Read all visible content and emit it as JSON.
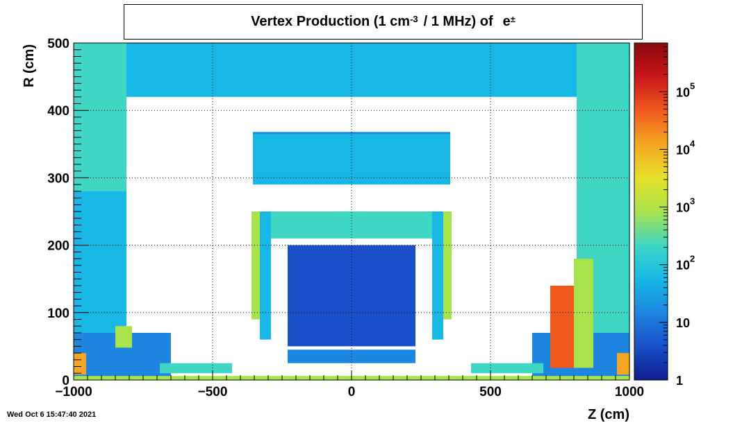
{
  "title": {
    "main": "Vertex Production (1 cm",
    "exp": "-3",
    "mid": "/ 1 MHz) of",
    "particle": "e",
    "particle_sup": "±"
  },
  "footer": "Wed Oct  6 15:47:40 2021",
  "chart_data": {
    "type": "heatmap",
    "xlabel": "Z (cm)",
    "ylabel": "R (cm)",
    "xlim": [
      -1000,
      1000
    ],
    "ylim": [
      0,
      500
    ],
    "x_ticks": [
      {
        "value": -1000,
        "label": "−1000"
      },
      {
        "value": -500,
        "label": "−500"
      },
      {
        "value": 0,
        "label": "0"
      },
      {
        "value": 500,
        "label": "500"
      },
      {
        "value": 1000,
        "label": "1000"
      }
    ],
    "y_ticks": [
      {
        "value": 0,
        "label": "0"
      },
      {
        "value": 100,
        "label": "100"
      },
      {
        "value": 200,
        "label": "200"
      },
      {
        "value": 300,
        "label": "300"
      },
      {
        "value": 400,
        "label": "400"
      },
      {
        "value": 500,
        "label": "500"
      }
    ],
    "grid": true,
    "colorscale": "log",
    "z_range": [
      1,
      700000
    ],
    "colorbar_ticks": [
      {
        "value": 1,
        "base": "1",
        "exp": ""
      },
      {
        "value": 10,
        "base": "10",
        "exp": ""
      },
      {
        "value": 100,
        "base": "10",
        "exp": "2"
      },
      {
        "value": 1000,
        "base": "10",
        "exp": "3"
      },
      {
        "value": 10000,
        "base": "10",
        "exp": "4"
      },
      {
        "value": 100000,
        "base": "10",
        "exp": "5"
      }
    ],
    "colors": [
      "#0d1f8c",
      "#1a4fc9",
      "#1c86e0",
      "#18b8e6",
      "#3fd6c4",
      "#a9e34b",
      "#e6e02a",
      "#f5a623",
      "#ef5a1c",
      "#c8161d",
      "#8b0a0a"
    ],
    "regions": [
      {
        "z": [
          -1000,
          -810
        ],
        "r": [
          0,
          500
        ],
        "value": 150
      },
      {
        "z": [
          -1000,
          -810
        ],
        "r": [
          0,
          280
        ],
        "value": 100
      },
      {
        "z": [
          810,
          1000
        ],
        "r": [
          0,
          500
        ],
        "value": 150
      },
      {
        "z": [
          -810,
          810
        ],
        "r": [
          420,
          500
        ],
        "value": 40
      },
      {
        "z": [
          -355,
          355
        ],
        "r": [
          360,
          368
        ],
        "value": 20
      },
      {
        "z": [
          -355,
          355
        ],
        "r": [
          290,
          365
        ],
        "value": 60
      },
      {
        "z": [
          -310,
          310
        ],
        "r": [
          210,
          250
        ],
        "value": 200
      },
      {
        "z": [
          -230,
          230
        ],
        "r": [
          50,
          195
        ],
        "value": 6
      },
      {
        "z": [
          -230,
          230
        ],
        "r": [
          195,
          200
        ],
        "value": 2
      },
      {
        "z": [
          -360,
          -330
        ],
        "r": [
          90,
          250
        ],
        "value": 800
      },
      {
        "z": [
          330,
          360
        ],
        "r": [
          90,
          250
        ],
        "value": 700
      },
      {
        "z": [
          -1000,
          -650
        ],
        "r": [
          0,
          70
        ],
        "value": 8
      },
      {
        "z": [
          650,
          1000
        ],
        "r": [
          0,
          70
        ],
        "value": 8
      },
      {
        "z": [
          -1000,
          1000
        ],
        "r": [
          0,
          6
        ],
        "value": 500
      },
      {
        "z": [
          -690,
          -430
        ],
        "r": [
          10,
          25
        ],
        "value": 300
      },
      {
        "z": [
          430,
          690
        ],
        "r": [
          10,
          25
        ],
        "value": 300
      },
      {
        "z": [
          -850,
          -790
        ],
        "r": [
          48,
          80
        ],
        "value": 600
      },
      {
        "z": [
          -1000,
          -955
        ],
        "r": [
          8,
          40
        ],
        "value": 20000
      },
      {
        "z": [
          955,
          1000
        ],
        "r": [
          8,
          40
        ],
        "value": 20000
      },
      {
        "z": [
          715,
          800
        ],
        "r": [
          18,
          140
        ],
        "value": 25000
      },
      {
        "z": [
          800,
          870
        ],
        "r": [
          18,
          180
        ],
        "value": 800
      },
      {
        "z": [
          -230,
          230
        ],
        "r": [
          25,
          45
        ],
        "value": 20
      },
      {
        "z": [
          -330,
          -290
        ],
        "r": [
          60,
          250
        ],
        "value": 60
      },
      {
        "z": [
          290,
          330
        ],
        "r": [
          60,
          250
        ],
        "value": 60
      }
    ]
  }
}
